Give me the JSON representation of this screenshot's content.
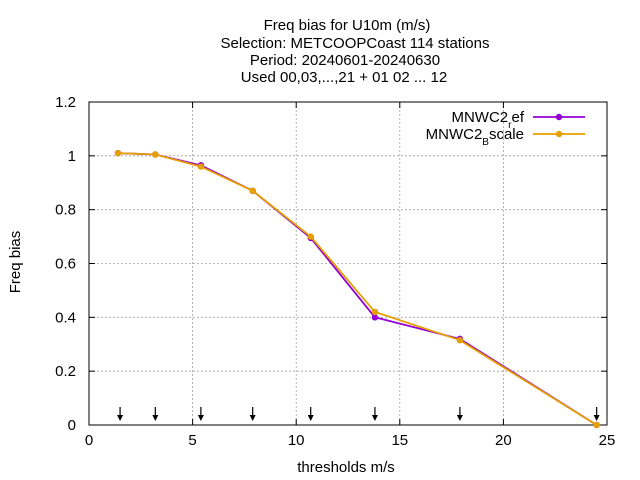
{
  "chart_data": {
    "type": "line",
    "title_lines": [
      "Freq bias  for U10m (m/s)",
      "Selection: METCOOPCoast    114 stations",
      "Period: 20240601-20240630",
      "Used 00,03,...,21 + 01 02 ... 12"
    ],
    "xlabel": "thresholds m/s",
    "ylabel": "Freq bias",
    "xlim": [
      0,
      25
    ],
    "ylim": [
      0,
      1.2
    ],
    "xticks": [
      0,
      5,
      10,
      15,
      20,
      25
    ],
    "yticks": [
      0,
      0.2,
      0.4,
      0.6,
      0.8,
      1,
      1.2
    ],
    "grid": true,
    "legend_position": "top-right",
    "threshold_arrows": [
      1.5,
      3.2,
      5.4,
      7.9,
      10.7,
      13.8,
      17.9,
      24.5
    ],
    "series": [
      {
        "name": "MNWC2_ref",
        "legend_main": "MNWC2",
        "legend_sub": "r",
        "legend_rest": "ef",
        "color": "#9400d3",
        "x": [
          1.4,
          3.2,
          5.4,
          7.9,
          10.7,
          13.8,
          17.9,
          24.5
        ],
        "y": [
          1.01,
          1.005,
          0.965,
          0.87,
          0.695,
          0.4,
          0.32,
          0.0
        ]
      },
      {
        "name": "MNWC2_Bscale",
        "legend_main": "MNWC2",
        "legend_sub": "B",
        "legend_rest": "scale",
        "color": "#e69f00",
        "x": [
          1.4,
          3.2,
          5.4,
          7.9,
          10.7,
          13.8,
          17.9,
          24.5
        ],
        "y": [
          1.01,
          1.005,
          0.96,
          0.87,
          0.7,
          0.42,
          0.315,
          0.0
        ]
      }
    ]
  }
}
